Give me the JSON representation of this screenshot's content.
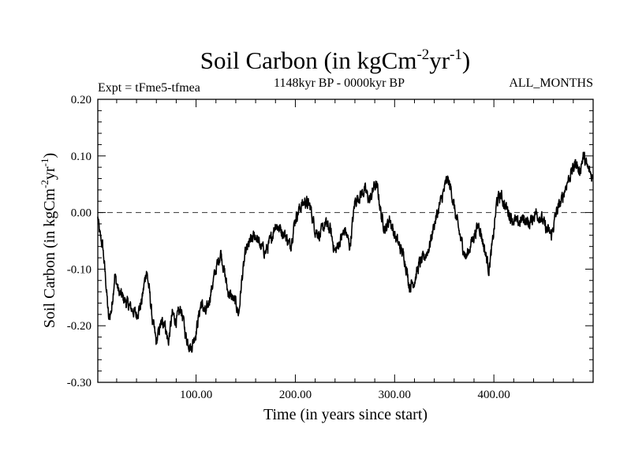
{
  "chart_data": {
    "type": "line",
    "title": {
      "prefix": "Soil Carbon (in kgCm",
      "sup1": "-2",
      "mid": "yr",
      "sup2": "-1",
      "suffix": ")"
    },
    "left_subtitle": "Expt = tFme5-tfmea",
    "center_subtitle": "1148kyr BP - 0000kyr BP",
    "right_subtitle": "ALL_MONTHS",
    "xlabel": "Time (in years since start)",
    "ylabel": {
      "prefix": "Soil Carbon (in kgCm",
      "sup1": "-2",
      "mid": "yr",
      "sup2": "-1",
      "suffix": ")"
    },
    "xlim": [
      1,
      500
    ],
    "ylim": [
      -0.3,
      0.2
    ],
    "x_tick_labels": [
      "100.00",
      "200.00",
      "300.00",
      "400.00"
    ],
    "x_tick_values": [
      100,
      200,
      300,
      400
    ],
    "y_tick_labels": [
      "0.20",
      "0.10",
      "0.00",
      "-0.10",
      "-0.20",
      "-0.30"
    ],
    "y_tick_values": [
      0.2,
      0.1,
      0.0,
      -0.1,
      -0.2,
      -0.3
    ],
    "reference_line": {
      "y": 0.0,
      "style": "dashed"
    },
    "series": [
      {
        "name": "Soil Carbon",
        "anchors": [
          [
            1,
            -0.01
          ],
          [
            3,
            -0.04
          ],
          [
            6,
            -0.06
          ],
          [
            9,
            -0.12
          ],
          [
            12,
            -0.19
          ],
          [
            15,
            -0.17
          ],
          [
            18,
            -0.11
          ],
          [
            22,
            -0.14
          ],
          [
            26,
            -0.15
          ],
          [
            30,
            -0.16
          ],
          [
            35,
            -0.17
          ],
          [
            40,
            -0.18
          ],
          [
            45,
            -0.16
          ],
          [
            50,
            -0.1
          ],
          [
            53,
            -0.14
          ],
          [
            56,
            -0.19
          ],
          [
            60,
            -0.23
          ],
          [
            64,
            -0.2
          ],
          [
            68,
            -0.19
          ],
          [
            72,
            -0.23
          ],
          [
            76,
            -0.18
          ],
          [
            80,
            -0.19
          ],
          [
            85,
            -0.17
          ],
          [
            90,
            -0.22
          ],
          [
            95,
            -0.24
          ],
          [
            100,
            -0.21
          ],
          [
            105,
            -0.16
          ],
          [
            110,
            -0.18
          ],
          [
            115,
            -0.14
          ],
          [
            120,
            -0.1
          ],
          [
            125,
            -0.07
          ],
          [
            128,
            -0.1
          ],
          [
            132,
            -0.14
          ],
          [
            136,
            -0.15
          ],
          [
            140,
            -0.16
          ],
          [
            143,
            -0.18
          ],
          [
            146,
            -0.12
          ],
          [
            150,
            -0.07
          ],
          [
            155,
            -0.05
          ],
          [
            160,
            -0.04
          ],
          [
            165,
            -0.06
          ],
          [
            170,
            -0.07
          ],
          [
            175,
            -0.05
          ],
          [
            180,
            -0.02
          ],
          [
            185,
            -0.03
          ],
          [
            190,
            -0.04
          ],
          [
            195,
            -0.06
          ],
          [
            200,
            -0.01
          ],
          [
            205,
            0.01
          ],
          [
            210,
            0.02
          ],
          [
            215,
            0.01
          ],
          [
            220,
            -0.03
          ],
          [
            225,
            -0.04
          ],
          [
            230,
            -0.02
          ],
          [
            235,
            -0.03
          ],
          [
            240,
            -0.07
          ],
          [
            245,
            -0.05
          ],
          [
            250,
            -0.03
          ],
          [
            255,
            -0.06
          ],
          [
            260,
            0.02
          ],
          [
            265,
            0.03
          ],
          [
            270,
            0.04
          ],
          [
            275,
            0.02
          ],
          [
            280,
            0.05
          ],
          [
            283,
            0.04
          ],
          [
            287,
            -0.01
          ],
          [
            291,
            -0.03
          ],
          [
            295,
            -0.01
          ],
          [
            300,
            -0.04
          ],
          [
            305,
            -0.06
          ],
          [
            310,
            -0.08
          ],
          [
            315,
            -0.13
          ],
          [
            320,
            -0.12
          ],
          [
            325,
            -0.09
          ],
          [
            330,
            -0.08
          ],
          [
            335,
            -0.06
          ],
          [
            340,
            -0.02
          ],
          [
            345,
            0.01
          ],
          [
            350,
            0.04
          ],
          [
            353,
            0.06
          ],
          [
            357,
            0.04
          ],
          [
            362,
            -0.01
          ],
          [
            367,
            -0.05
          ],
          [
            372,
            -0.08
          ],
          [
            376,
            -0.06
          ],
          [
            380,
            -0.04
          ],
          [
            385,
            -0.02
          ],
          [
            390,
            -0.06
          ],
          [
            395,
            -0.1
          ],
          [
            399,
            -0.05
          ],
          [
            403,
            0.02
          ],
          [
            407,
            0.03
          ],
          [
            412,
            0.01
          ],
          [
            418,
            -0.01
          ],
          [
            424,
            -0.02
          ],
          [
            430,
            -0.01
          ],
          [
            436,
            -0.02
          ],
          [
            442,
            0.0
          ],
          [
            448,
            -0.01
          ],
          [
            453,
            -0.03
          ],
          [
            458,
            -0.04
          ],
          [
            463,
            0.0
          ],
          [
            468,
            0.02
          ],
          [
            473,
            0.05
          ],
          [
            478,
            0.07
          ],
          [
            483,
            0.09
          ],
          [
            486,
            0.07
          ],
          [
            490,
            0.1
          ],
          [
            494,
            0.08
          ],
          [
            497,
            0.07
          ],
          [
            500,
            0.06
          ]
        ]
      }
    ]
  }
}
